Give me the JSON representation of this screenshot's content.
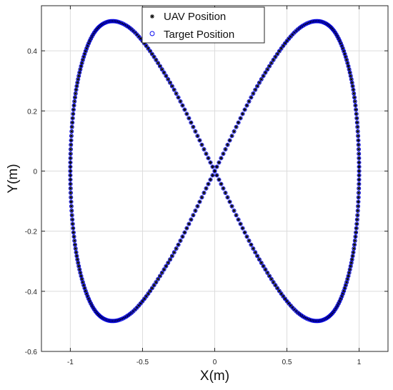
{
  "chart_data": {
    "type": "scatter",
    "title": "",
    "xlabel": "X(m)",
    "ylabel": "Y(m)",
    "xlim": [
      -1.2,
      1.2
    ],
    "ylim": [
      -0.6,
      0.55
    ],
    "xticks": [
      -1,
      -0.5,
      0,
      0.5,
      1
    ],
    "xtick_labels": [
      "-1",
      "-0.5",
      "0",
      "0.5",
      "1"
    ],
    "yticks": [
      -0.6,
      -0.4,
      -0.2,
      0,
      0.2,
      0.4
    ],
    "ytick_labels": [
      "-0.6",
      "-0.4",
      "-0.2",
      "0",
      "0.2",
      "0.4"
    ],
    "grid": true,
    "legend": "top-center",
    "series": [
      {
        "name": "UAV Position",
        "marker": "asterisk",
        "color": "#000000",
        "x": [
          0.0,
          0.309,
          0.588,
          0.809,
          0.951,
          1.0,
          0.951,
          0.809,
          0.588,
          0.309,
          0.0,
          -0.309,
          -0.588,
          -0.809,
          -0.951,
          -1.0,
          -0.951,
          -0.809,
          -0.588,
          -0.309,
          0.0
        ],
        "y": [
          0.0,
          0.294,
          0.476,
          0.476,
          0.294,
          0.0,
          -0.294,
          -0.476,
          -0.476,
          -0.294,
          0.0,
          0.294,
          0.476,
          0.476,
          0.294,
          0.0,
          -0.294,
          -0.476,
          -0.476,
          -0.294,
          0.0
        ]
      },
      {
        "name": "Target Position",
        "marker": "circle",
        "color": "#0000ee",
        "x": [
          0.0,
          0.309,
          0.588,
          0.809,
          0.951,
          1.0,
          0.951,
          0.809,
          0.588,
          0.309,
          0.0,
          -0.309,
          -0.588,
          -0.809,
          -0.951,
          -1.0,
          -0.951,
          -0.809,
          -0.588,
          -0.309,
          0.0
        ],
        "y": [
          0.0,
          0.294,
          0.476,
          0.476,
          0.294,
          0.0,
          -0.294,
          -0.476,
          -0.476,
          -0.294,
          0.0,
          0.294,
          0.476,
          0.476,
          0.294,
          0.0,
          -0.294,
          -0.476,
          -0.476,
          -0.294,
          0.0
        ]
      }
    ]
  }
}
